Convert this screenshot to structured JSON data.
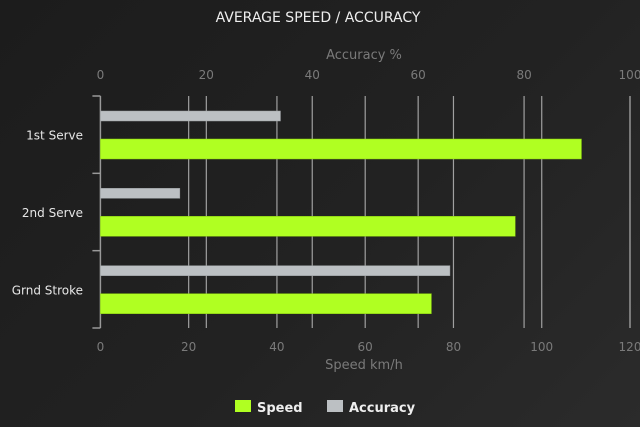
{
  "chart_data": {
    "type": "bar",
    "orientation": "horizontal",
    "title": "AVERAGE SPEED / ACCURACY",
    "categories": [
      "1st Serve",
      "2nd Serve",
      "Grnd Stroke"
    ],
    "series": [
      {
        "name": "Speed",
        "values": [
          109,
          94,
          75
        ],
        "color": "#b0ff22",
        "axis": "bottom"
      },
      {
        "name": "Accuracy",
        "values": [
          34,
          15,
          66
        ],
        "color": "#bcc0c3",
        "axis": "top"
      }
    ],
    "xaxis_bottom": {
      "label": "Speed km/h",
      "range": [
        0,
        120
      ],
      "ticks": [
        0,
        20,
        40,
        60,
        80,
        100,
        120
      ]
    },
    "xaxis_top": {
      "label": "Accuracy %",
      "range": [
        0,
        100
      ],
      "ticks": [
        0,
        20,
        40,
        60,
        80,
        100
      ]
    },
    "grid": true,
    "legend": "bottom",
    "colors": {
      "background": "#222222",
      "text": "#e6e6e6",
      "axis_text": "#7a7a7a",
      "grid": "#a0a0a0"
    }
  }
}
